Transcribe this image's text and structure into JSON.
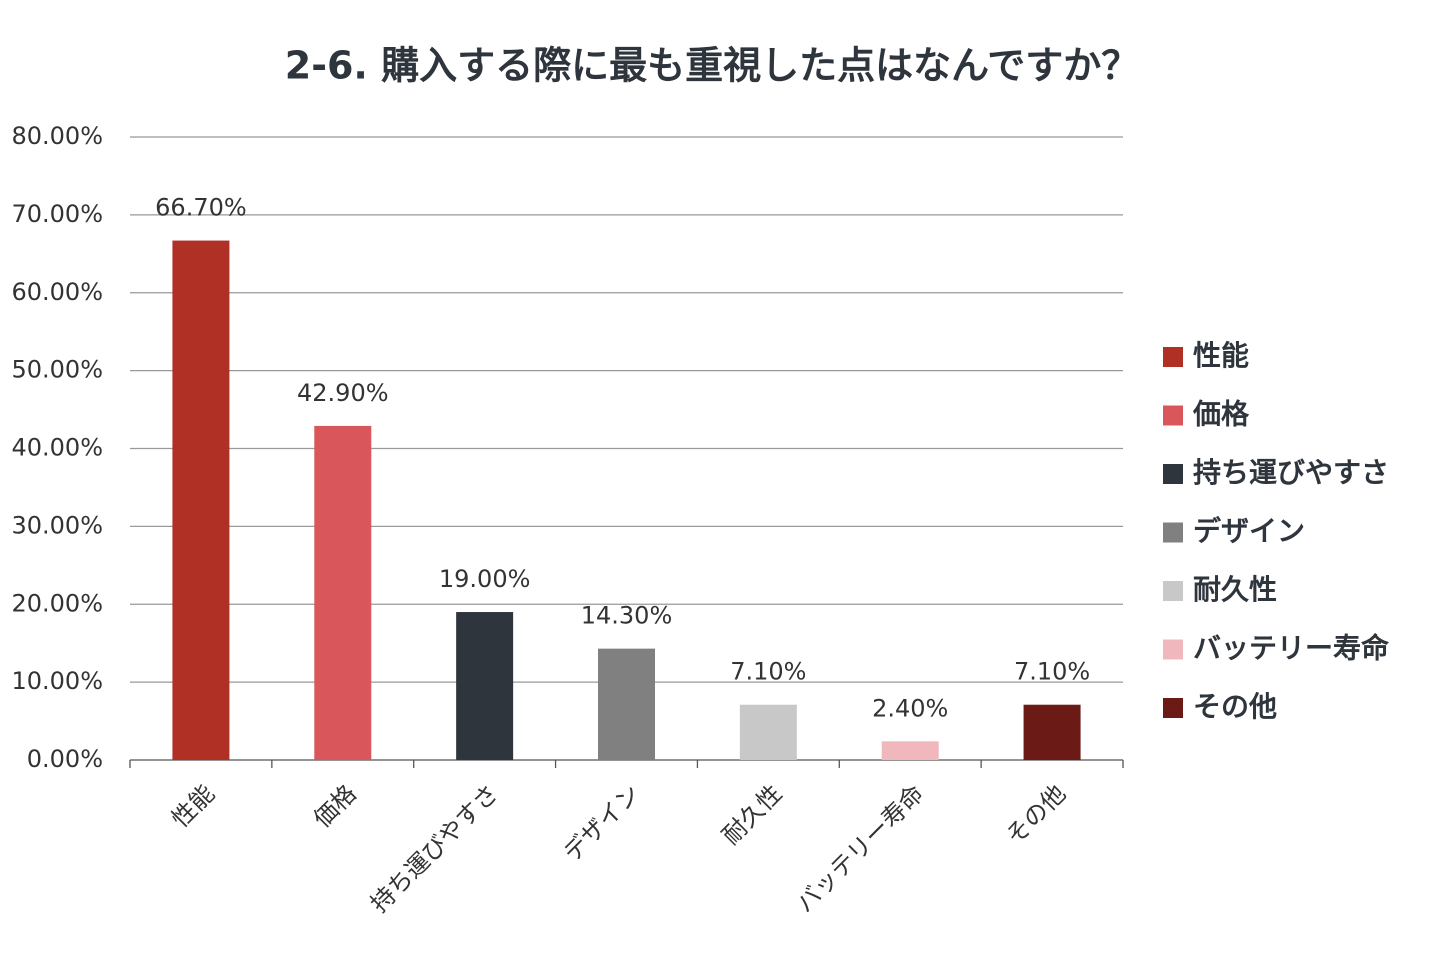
{
  "chart_data": {
    "type": "bar",
    "title": "2-6. 購入する際に最も重視した点はなんですか？",
    "categories": [
      "性能",
      "価格",
      "持ち運びやすさ",
      "デザイン",
      "耐久性",
      "バッテリー寿命",
      "その他"
    ],
    "values": [
      66.7,
      42.9,
      19.0,
      14.3,
      7.1,
      2.4,
      7.1
    ],
    "value_labels": [
      "66.70%",
      "42.90%",
      "19.00%",
      "14.30%",
      "7.10%",
      "2.40%",
      "7.10%"
    ],
    "colors": [
      "#b03025",
      "#d9575a",
      "#2e353d",
      "#808080",
      "#c8c8c8",
      "#f0b8bc",
      "#6b1a15"
    ],
    "ylim": [
      0,
      80
    ],
    "yticks": [
      {
        "value": 0,
        "label": "0.00%"
      },
      {
        "value": 10,
        "label": "10.00%"
      },
      {
        "value": 20,
        "label": "20.00%"
      },
      {
        "value": 30,
        "label": "30.00%"
      },
      {
        "value": 40,
        "label": "40.00%"
      },
      {
        "value": 50,
        "label": "50.00%"
      },
      {
        "value": 60,
        "label": "60.00%"
      },
      {
        "value": 70,
        "label": "70.00%"
      },
      {
        "value": 80,
        "label": "80.00%"
      }
    ],
    "grid": true,
    "legend": "right"
  }
}
